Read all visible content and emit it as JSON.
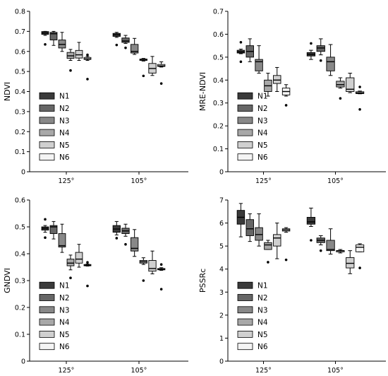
{
  "chart_data": [
    {
      "type": "box",
      "id": "ndvi",
      "ylabel": "NDVI",
      "categories": [
        "125°",
        "105°"
      ],
      "ylim": [
        0,
        0.8
      ],
      "yticks": [
        0,
        0.1,
        0.2,
        0.3,
        0.4,
        0.5,
        0.6,
        0.7,
        0.8
      ],
      "ytick_labels": [
        "0",
        "0.1",
        "0.2",
        "0.3",
        "0.4",
        "0.5",
        "0.6",
        "0.7",
        "0.8"
      ],
      "legend": [
        "N1",
        "N2",
        "N3",
        "N4",
        "N5",
        "N6"
      ],
      "legend_position": "lower-left",
      "series": [
        {
          "name": "N1",
          "boxes": [
            {
              "min": 0.68,
              "q1": 0.685,
              "median": 0.692,
              "q3": 0.699,
              "max": 0.7,
              "outliers": [
                0.635
              ]
            },
            {
              "min": 0.67,
              "q1": 0.675,
              "median": 0.683,
              "q3": 0.69,
              "max": 0.695,
              "outliers": [
                0.632
              ]
            }
          ]
        },
        {
          "name": "N2",
          "boxes": [
            {
              "min": 0.63,
              "q1": 0.657,
              "median": 0.688,
              "q3": 0.695,
              "max": 0.7,
              "outliers": []
            },
            {
              "min": 0.64,
              "q1": 0.645,
              "median": 0.652,
              "q3": 0.667,
              "max": 0.68,
              "outliers": [
                0.618
              ]
            }
          ]
        },
        {
          "name": "N3",
          "boxes": [
            {
              "min": 0.6,
              "q1": 0.617,
              "median": 0.635,
              "q3": 0.657,
              "max": 0.695,
              "outliers": []
            },
            {
              "min": 0.585,
              "q1": 0.592,
              "median": 0.6,
              "q3": 0.635,
              "max": 0.665,
              "outliers": []
            }
          ]
        },
        {
          "name": "N4",
          "boxes": [
            {
              "min": 0.555,
              "q1": 0.565,
              "median": 0.578,
              "q3": 0.595,
              "max": 0.61,
              "outliers": [
                0.505
              ]
            },
            {
              "min": 0.552,
              "q1": 0.555,
              "median": 0.56,
              "q3": 0.562,
              "max": 0.565,
              "outliers": [
                0.478
              ]
            }
          ]
        },
        {
          "name": "N5",
          "boxes": [
            {
              "min": 0.555,
              "q1": 0.567,
              "median": 0.583,
              "q3": 0.605,
              "max": 0.645,
              "outliers": []
            },
            {
              "min": 0.48,
              "q1": 0.492,
              "median": 0.515,
              "q3": 0.54,
              "max": 0.575,
              "outliers": []
            }
          ]
        },
        {
          "name": "N6",
          "boxes": [
            {
              "min": 0.555,
              "q1": 0.56,
              "median": 0.563,
              "q3": 0.57,
              "max": 0.575,
              "outliers": [
                0.583,
                0.462
              ]
            },
            {
              "min": 0.522,
              "q1": 0.525,
              "median": 0.528,
              "q3": 0.535,
              "max": 0.548,
              "outliers": [
                0.44
              ]
            }
          ]
        }
      ]
    },
    {
      "type": "box",
      "id": "mre-ndvi",
      "ylabel": "MRE-NDVI",
      "categories": [
        "125°",
        "105°"
      ],
      "ylim": [
        0,
        0.7
      ],
      "yticks": [
        0,
        0.1,
        0.2,
        0.3,
        0.4,
        0.5,
        0.6,
        0.7
      ],
      "ytick_labels": [
        "0",
        "0.1",
        "0.2",
        "0.3",
        "0.4",
        "0.5",
        "0.6",
        "0.7"
      ],
      "legend": [
        "N1",
        "N2",
        "N3",
        "N4",
        "N5",
        "N6"
      ],
      "legend_position": "lower-left",
      "series": [
        {
          "name": "N1",
          "boxes": [
            {
              "min": 0.515,
              "q1": 0.518,
              "median": 0.523,
              "q3": 0.53,
              "max": 0.535,
              "outliers": [
                0.565,
                0.48
              ]
            },
            {
              "min": 0.49,
              "q1": 0.505,
              "median": 0.512,
              "q3": 0.52,
              "max": 0.53,
              "outliers": [
                0.56
              ]
            }
          ]
        },
        {
          "name": "N2",
          "boxes": [
            {
              "min": 0.48,
              "q1": 0.5,
              "median": 0.525,
              "q3": 0.55,
              "max": 0.58,
              "outliers": []
            },
            {
              "min": 0.51,
              "q1": 0.525,
              "median": 0.54,
              "q3": 0.55,
              "max": 0.58,
              "outliers": [
                0.485
              ]
            }
          ]
        },
        {
          "name": "N3",
          "boxes": [
            {
              "min": 0.43,
              "q1": 0.44,
              "median": 0.48,
              "q3": 0.49,
              "max": 0.55,
              "outliers": []
            },
            {
              "min": 0.42,
              "q1": 0.44,
              "median": 0.48,
              "q3": 0.5,
              "max": 0.555,
              "outliers": []
            }
          ]
        },
        {
          "name": "N4",
          "boxes": [
            {
              "min": 0.33,
              "q1": 0.35,
              "median": 0.375,
              "q3": 0.4,
              "max": 0.43,
              "outliers": []
            },
            {
              "min": 0.365,
              "q1": 0.37,
              "median": 0.38,
              "q3": 0.395,
              "max": 0.41,
              "outliers": [
                0.32
              ]
            }
          ]
        },
        {
          "name": "N5",
          "boxes": [
            {
              "min": 0.35,
              "q1": 0.385,
              "median": 0.4,
              "q3": 0.42,
              "max": 0.455,
              "outliers": []
            },
            {
              "min": 0.345,
              "q1": 0.35,
              "median": 0.36,
              "q3": 0.41,
              "max": 0.43,
              "outliers": []
            }
          ]
        },
        {
          "name": "N6",
          "boxes": [
            {
              "min": 0.33,
              "q1": 0.335,
              "median": 0.35,
              "q3": 0.365,
              "max": 0.38,
              "outliers": [
                0.29
              ]
            },
            {
              "min": 0.34,
              "q1": 0.341,
              "median": 0.344,
              "q3": 0.349,
              "max": 0.352,
              "outliers": [
                0.37,
                0.272
              ]
            }
          ]
        }
      ]
    },
    {
      "type": "box",
      "id": "gndvi",
      "ylabel": "GNDVI",
      "categories": [
        "125°",
        "105°"
      ],
      "ylim": [
        0,
        0.6
      ],
      "yticks": [
        0,
        0.1,
        0.2,
        0.3,
        0.4,
        0.5,
        0.6
      ],
      "ytick_labels": [
        "0",
        "0.1",
        "0.2",
        "0.3",
        "0.4",
        "0.5",
        "0.6"
      ],
      "legend": [
        "N1",
        "N2",
        "N3",
        "N4",
        "N5",
        "N6"
      ],
      "legend_position": "lower-left",
      "series": [
        {
          "name": "N1",
          "boxes": [
            {
              "min": 0.48,
              "q1": 0.488,
              "median": 0.495,
              "q3": 0.5,
              "max": 0.505,
              "outliers": [
                0.528,
                0.46
              ]
            },
            {
              "min": 0.47,
              "q1": 0.48,
              "median": 0.492,
              "q3": 0.505,
              "max": 0.52,
              "outliers": [
                0.458
              ]
            }
          ]
        },
        {
          "name": "N2",
          "boxes": [
            {
              "min": 0.455,
              "q1": 0.475,
              "median": 0.5,
              "q3": 0.505,
              "max": 0.52,
              "outliers": []
            },
            {
              "min": 0.465,
              "q1": 0.475,
              "median": 0.485,
              "q3": 0.495,
              "max": 0.51,
              "outliers": [
                0.435
              ]
            }
          ]
        },
        {
          "name": "N3",
          "boxes": [
            {
              "min": 0.405,
              "q1": 0.425,
              "median": 0.43,
              "q3": 0.475,
              "max": 0.51,
              "outliers": []
            },
            {
              "min": 0.39,
              "q1": 0.41,
              "median": 0.42,
              "q3": 0.46,
              "max": 0.49,
              "outliers": []
            }
          ]
        },
        {
          "name": "N4",
          "boxes": [
            {
              "min": 0.34,
              "q1": 0.355,
              "median": 0.365,
              "q3": 0.38,
              "max": 0.395,
              "outliers": [
                0.31
              ]
            },
            {
              "min": 0.36,
              "q1": 0.365,
              "median": 0.37,
              "q3": 0.375,
              "max": 0.385,
              "outliers": [
                0.3
              ]
            }
          ]
        },
        {
          "name": "N5",
          "boxes": [
            {
              "min": 0.35,
              "q1": 0.365,
              "median": 0.38,
              "q3": 0.405,
              "max": 0.435,
              "outliers": []
            },
            {
              "min": 0.325,
              "q1": 0.335,
              "median": 0.345,
              "q3": 0.375,
              "max": 0.41,
              "outliers": []
            }
          ]
        },
        {
          "name": "N6",
          "boxes": [
            {
              "min": 0.354,
              "q1": 0.355,
              "median": 0.357,
              "q3": 0.36,
              "max": 0.362,
              "outliers": [
                0.368,
                0.28
              ]
            },
            {
              "min": 0.338,
              "q1": 0.34,
              "median": 0.342,
              "q3": 0.345,
              "max": 0.348,
              "outliers": [
                0.36,
                0.268
              ]
            }
          ]
        }
      ]
    },
    {
      "type": "box",
      "id": "pssrc",
      "ylabel": "PSSRc",
      "categories": [
        "125°",
        "105°"
      ],
      "ylim": [
        0,
        7
      ],
      "yticks": [
        0,
        1,
        2,
        3,
        4,
        5,
        6,
        7
      ],
      "ytick_labels": [
        "0",
        "1",
        "2",
        "3",
        "4",
        "5",
        "6",
        "7"
      ],
      "legend": [
        "N1",
        "N2",
        "N3",
        "N4",
        "N5",
        "N6"
      ],
      "legend_position": "lower-left",
      "series": [
        {
          "name": "N1",
          "boxes": [
            {
              "min": 5.4,
              "q1": 5.95,
              "median": 6.25,
              "q3": 6.55,
              "max": 6.85,
              "outliers": []
            },
            {
              "min": 5.85,
              "q1": 5.95,
              "median": 6.05,
              "q3": 6.25,
              "max": 6.65,
              "outliers": [
                5.25
              ]
            }
          ]
        },
        {
          "name": "N2",
          "boxes": [
            {
              "min": 5.2,
              "q1": 5.45,
              "median": 5.75,
              "q3": 6.15,
              "max": 6.4,
              "outliers": []
            },
            {
              "min": 5.05,
              "q1": 5.15,
              "median": 5.25,
              "q3": 5.35,
              "max": 5.45,
              "outliers": [
                4.8
              ]
            }
          ]
        },
        {
          "name": "N3",
          "boxes": [
            {
              "min": 5.0,
              "q1": 5.25,
              "median": 5.5,
              "q3": 5.8,
              "max": 6.4,
              "outliers": []
            },
            {
              "min": 4.65,
              "q1": 4.8,
              "median": 4.85,
              "q3": 5.25,
              "max": 5.75,
              "outliers": []
            }
          ]
        },
        {
          "name": "N4",
          "boxes": [
            {
              "min": 4.85,
              "q1": 4.85,
              "median": 5.05,
              "q3": 5.15,
              "max": 5.25,
              "outliers": [
                4.3
              ]
            },
            {
              "min": 4.7,
              "q1": 4.75,
              "median": 4.8,
              "q3": 4.8,
              "max": 4.85,
              "outliers": []
            }
          ]
        },
        {
          "name": "N5",
          "boxes": [
            {
              "min": 4.45,
              "q1": 5.0,
              "median": 5.35,
              "q3": 5.5,
              "max": 6.0,
              "outliers": []
            },
            {
              "min": 3.8,
              "q1": 4.05,
              "median": 4.25,
              "q3": 4.5,
              "max": 4.8,
              "outliers": []
            }
          ]
        },
        {
          "name": "N6",
          "boxes": [
            {
              "min": 5.6,
              "q1": 5.65,
              "median": 5.7,
              "q3": 5.75,
              "max": 5.8,
              "outliers": [
                4.4
              ]
            },
            {
              "min": 4.75,
              "q1": 4.75,
              "median": 4.95,
              "q3": 5.05,
              "max": 5.1,
              "outliers": [
                4.05
              ]
            }
          ]
        }
      ]
    }
  ],
  "legend_colors": [
    "#3a3a3a",
    "#666666",
    "#888888",
    "#a8a8a8",
    "#d0d0d0",
    "#f4f4f4"
  ],
  "outlier_color": "#000000"
}
